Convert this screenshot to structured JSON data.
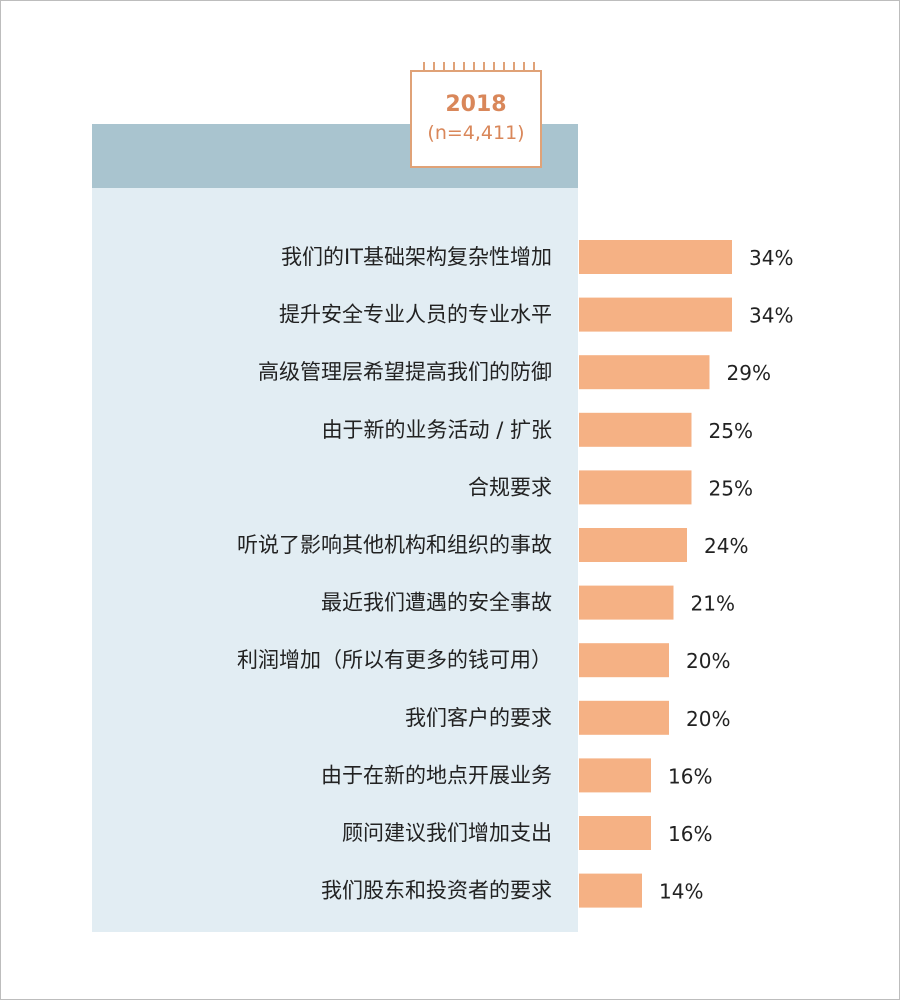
{
  "header": {
    "year": "2018",
    "sample": "(n=4,411)"
  },
  "colors": {
    "bar": "#f5b184",
    "panel": "#e2edf3",
    "panel_header": "#a9c4cf",
    "accent": "#d9875a"
  },
  "chart_data": {
    "type": "bar",
    "orientation": "horizontal",
    "categories": [
      "我们的IT基础架构复杂性增加",
      "提升安全专业人员的专业水平",
      "高级管理层希望提高我们的防御",
      "由于新的业务活动 / 扩张",
      "合规要求",
      "听说了影响其他机构和组织的事故",
      "最近我们遭遇的安全事故",
      "利润增加（所以有更多的钱可用）",
      "我们客户的要求",
      "由于在新的地点开展业务",
      "顾问建议我们增加支出",
      "我们股东和投资者的要求"
    ],
    "values": [
      34,
      34,
      29,
      25,
      25,
      24,
      21,
      20,
      20,
      16,
      16,
      14
    ],
    "value_labels": [
      "34%",
      "34%",
      "29%",
      "25%",
      "25%",
      "24%",
      "21%",
      "20%",
      "20%",
      "16%",
      "16%",
      "14%"
    ],
    "unit": "%"
  }
}
